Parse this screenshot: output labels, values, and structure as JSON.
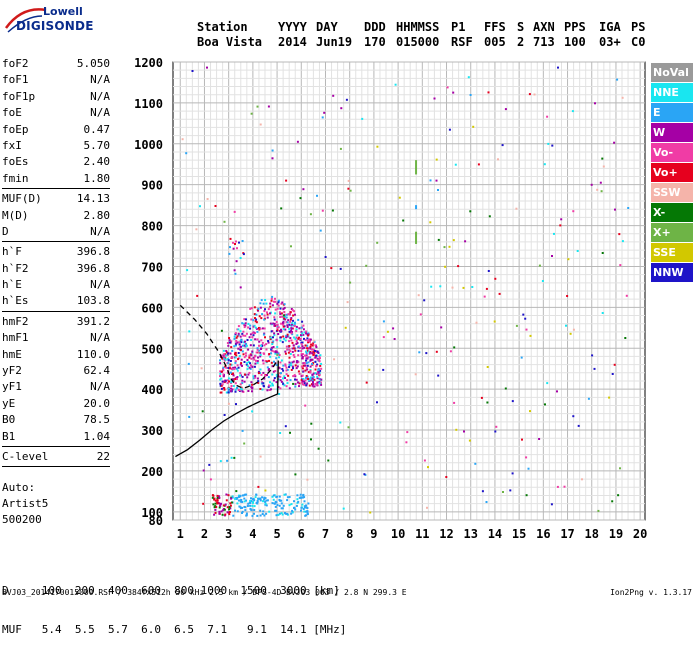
{
  "logo": {
    "line1": "Lowell",
    "line2": "DIGISONDE"
  },
  "header": {
    "row1": [
      "Station",
      "YYYY",
      "DAY",
      "DDD",
      "HHMMSS",
      "P1",
      "FFS",
      "S",
      "AXN",
      "PPS",
      "IGA",
      "PS"
    ],
    "row2": [
      "Boa Vista",
      "2014",
      "Jun19",
      "170",
      "015000",
      "RSF",
      "005",
      "2",
      "713",
      "100",
      "03+",
      "C0"
    ]
  },
  "parameters": {
    "group1": [
      {
        "name": "foF2",
        "value": "5.050"
      },
      {
        "name": "foF1",
        "value": "N/A"
      },
      {
        "name": "foF1p",
        "value": "N/A"
      },
      {
        "name": "foE",
        "value": "N/A"
      },
      {
        "name": "foEp",
        "value": "0.47"
      },
      {
        "name": "fxI",
        "value": "5.70"
      },
      {
        "name": "foEs",
        "value": "2.40"
      },
      {
        "name": "fmin",
        "value": "1.80"
      }
    ],
    "group2": [
      {
        "name": "MUF(D)",
        "value": "14.13"
      },
      {
        "name": "M(D)",
        "value": "2.80"
      },
      {
        "name": "D",
        "value": "N/A"
      }
    ],
    "group3": [
      {
        "name": "h`F",
        "value": "396.8"
      },
      {
        "name": "h`F2",
        "value": "396.8"
      },
      {
        "name": "h`E",
        "value": "N/A"
      },
      {
        "name": "h`Es",
        "value": "103.8"
      }
    ],
    "group4": [
      {
        "name": "hmF2",
        "value": "391.2"
      },
      {
        "name": "hmF1",
        "value": "N/A"
      },
      {
        "name": "hmE",
        "value": "110.0"
      },
      {
        "name": "yF2",
        "value": "62.4"
      },
      {
        "name": "yF1",
        "value": "N/A"
      },
      {
        "name": "yE",
        "value": "20.0"
      },
      {
        "name": "B0",
        "value": "78.5"
      },
      {
        "name": "B1",
        "value": "1.04"
      }
    ],
    "group5": [
      {
        "name": "C-level",
        "value": "22"
      }
    ]
  },
  "autoscaling": [
    "Auto:",
    "Artist5",
    "500200"
  ],
  "distance_table": {
    "d_label": "D",
    "d_values": [
      "100",
      "200",
      "400",
      "600",
      "800",
      "1000",
      "1500",
      "3000"
    ],
    "d_unit": "[km]",
    "muf_label": "MUF",
    "muf_values": [
      "5.4",
      "5.5",
      "5.7",
      "6.0",
      "6.5",
      "7.1",
      "9.1",
      "14.1"
    ],
    "muf_unit": "[MHz]"
  },
  "footer": {
    "left": "BVJ03_2014170015000.RSF / 384fx512h 50 kHz 2.5 km / DPS-4D BVJ03 003 / 2.8 N 299.3 E",
    "right": "Ion2Png v. 1.3.17"
  },
  "legend": [
    {
      "label": "NoVal",
      "color": "#9a9a9a"
    },
    {
      "label": "NNE",
      "color": "#19e6f0"
    },
    {
      "label": "E",
      "color": "#2aa5f5"
    },
    {
      "label": "W",
      "color": "#a500a5"
    },
    {
      "label": "Vo-",
      "color": "#f03ca5"
    },
    {
      "label": "Vo+",
      "color": "#e6001e"
    },
    {
      "label": "SSW",
      "color": "#f5b4aa"
    },
    {
      "label": "X-",
      "color": "#057805"
    },
    {
      "label": "X+",
      "color": "#6eb446"
    },
    {
      "label": "SSE",
      "color": "#d2c800"
    },
    {
      "label": "NNW",
      "color": "#1e14c8"
    }
  ],
  "chart_data": {
    "type": "scatter",
    "title": "",
    "xlabel": "",
    "ylabel": "",
    "x_ticks": [
      "1",
      "2",
      "3",
      "4",
      "5",
      "6",
      "7",
      "8",
      "9",
      "10",
      "11",
      "12",
      "13",
      "14",
      "15",
      "16",
      "17",
      "18",
      "19",
      "20"
    ],
    "y_ticks": [
      "80",
      "100",
      "200",
      "300",
      "400",
      "500",
      "600",
      "700",
      "800",
      "900",
      "1000",
      "1100",
      "1200"
    ],
    "xlim": [
      1,
      20
    ],
    "ylim": [
      80,
      1200
    ],
    "grid": true,
    "legend_position": "right",
    "traces": [
      {
        "name": "trace-f2",
        "style": "solid",
        "points": [
          [
            0.8,
            235
          ],
          [
            1.3,
            252
          ],
          [
            1.8,
            275
          ],
          [
            2.3,
            300
          ],
          [
            2.8,
            322
          ],
          [
            3.3,
            340
          ],
          [
            3.8,
            356
          ],
          [
            4.3,
            370
          ],
          [
            4.7,
            380
          ],
          [
            5.02,
            388
          ],
          [
            5.05,
            470
          ]
        ]
      },
      {
        "name": "trace-upper",
        "style": "dashed",
        "points": [
          [
            1.0,
            605
          ],
          [
            1.6,
            570
          ],
          [
            2.1,
            535
          ],
          [
            2.6,
            490
          ],
          [
            2.9,
            455
          ],
          [
            3.1,
            425
          ],
          [
            3.3,
            410
          ],
          [
            3.6,
            402
          ],
          [
            4.0,
            410
          ],
          [
            4.4,
            425
          ],
          [
            4.8,
            450
          ],
          [
            5.0,
            470
          ]
        ]
      }
    ],
    "clusters": [
      {
        "name": "F-region",
        "x": [
          2.6,
          6.8
        ],
        "y": [
          380,
          660
        ],
        "density": 1.0
      },
      {
        "name": "Es-trace",
        "x": [
          2.3,
          6.3
        ],
        "y": [
          92,
          145
        ],
        "density": 0.9
      },
      {
        "name": "spread",
        "x": [
          2.9,
          3.6
        ],
        "y": [
          680,
          770
        ],
        "density": 0.4
      }
    ],
    "vertical_segments": [
      {
        "x": 10.7,
        "y": [
          925,
          960
        ],
        "color": "#6eb446"
      },
      {
        "x": 10.7,
        "y": [
          755,
          785
        ],
        "color": "#6eb446"
      },
      {
        "x": 10.7,
        "y": [
          840,
          850
        ],
        "color": "#2aa5f5"
      }
    ]
  }
}
